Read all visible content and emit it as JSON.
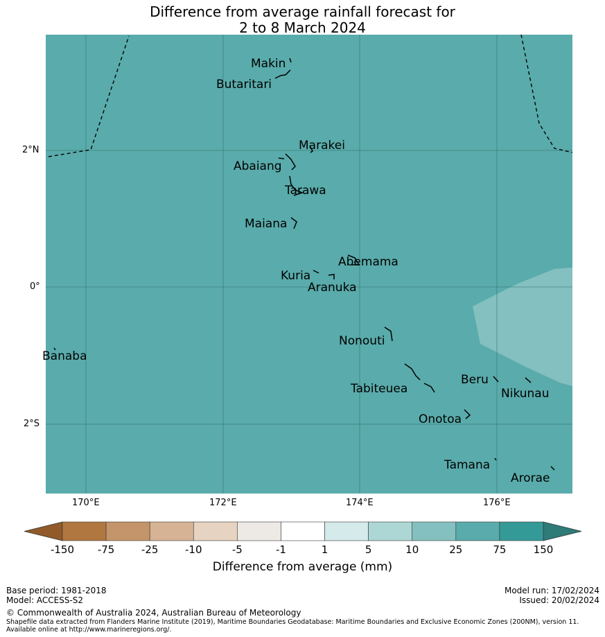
{
  "title": {
    "line1": "Difference from average rainfall forecast for",
    "line2": "2 to 8 March 2024"
  },
  "map": {
    "background_color": "#5aabab",
    "patch_color": "#84c0bf",
    "lon_ticks": [
      "170°E",
      "172°E",
      "174°E",
      "176°E"
    ],
    "lat_ticks": [
      "2°N",
      "0°",
      "2°S"
    ],
    "islands": [
      "Makin",
      "Butaritari",
      "Marakei",
      "Abaiang",
      "Tarawa",
      "Maiana",
      "Abemama",
      "Kuria",
      "Aranuka",
      "Nonouti",
      "Banaba",
      "Beru",
      "Nikunau",
      "Tabiteuea",
      "Onotoa",
      "Tamana",
      "Arorae"
    ]
  },
  "colorbar": {
    "labels": [
      "-150",
      "-75",
      "-25",
      "-10",
      "-5",
      "-1",
      "1",
      "5",
      "10",
      "25",
      "75",
      "150"
    ],
    "colors": [
      "#b07840",
      "#c4956a",
      "#d6b394",
      "#e7d3c1",
      "#ede9e5",
      "#ffffff",
      "#d5eaea",
      "#acd7d4",
      "#84c0bf",
      "#5aabab",
      "#349a97"
    ],
    "under_color": "#915a28",
    "over_color": "#2e7b78",
    "axis_label": "Difference from average (mm)"
  },
  "footer": {
    "base_period": "Base period: 1981-2018",
    "model": "Model: ACCESS-S2",
    "model_run": "Model run: 17/02/2024",
    "issued": "Issued: 20/02/2024",
    "copyright": "© Commonwealth of Australia 2024, Australian Bureau of Meteorology",
    "shapefile_note": "Shapefile data extracted from Flanders Marine Institute (2019), Maritime Boundaries Geodatabase: Maritime Boundaries and Exclusive Economic Zones (200NM), version 11. Available online at http://www.marineregions.org/."
  }
}
